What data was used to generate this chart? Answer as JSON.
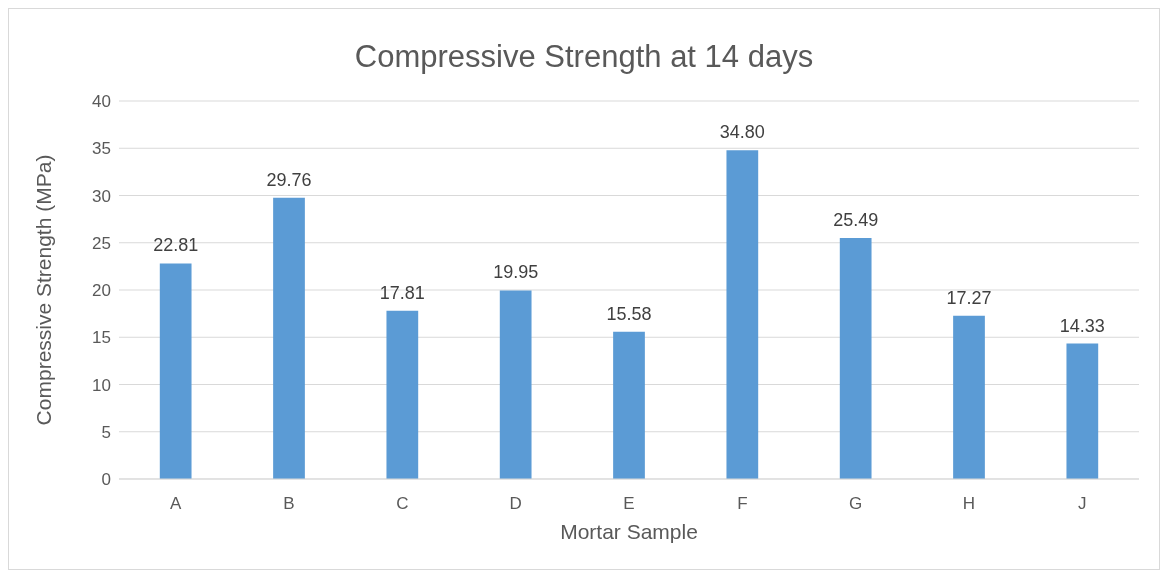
{
  "chart_data": {
    "type": "bar",
    "title": "Compressive Strength at 14 days",
    "xlabel": "Mortar Sample",
    "ylabel": "Compressive Strength (MPa)",
    "categories": [
      "A",
      "B",
      "C",
      "D",
      "E",
      "F",
      "G",
      "H",
      "J"
    ],
    "values": [
      22.81,
      29.76,
      17.81,
      19.95,
      15.58,
      34.8,
      25.49,
      17.27,
      14.33
    ],
    "value_labels": [
      "22.81",
      "29.76",
      "17.81",
      "19.95",
      "15.58",
      "34.80",
      "25.49",
      "17.27",
      "14.33"
    ],
    "color": "#5b9bd5",
    "ylim": [
      0,
      40
    ],
    "yticks": [
      0,
      5,
      10,
      15,
      20,
      25,
      30,
      35,
      40
    ],
    "grid": "y"
  }
}
